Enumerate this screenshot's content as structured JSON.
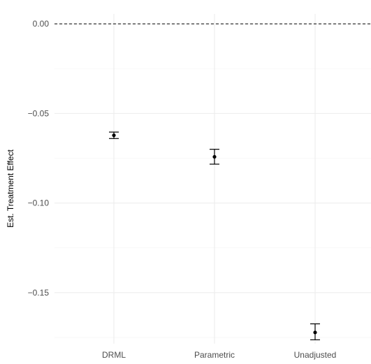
{
  "chart_data": {
    "type": "scatter",
    "title": "",
    "xlabel": "",
    "ylabel": "Est. Treatment Effect",
    "categories": [
      "DRML",
      "Parametric",
      "Unadjusted"
    ],
    "series": [
      {
        "estimate": [
          -0.0622,
          -0.0742,
          -0.1722
        ],
        "lower": [
          -0.064,
          -0.0783,
          -0.1763
        ],
        "upper": [
          -0.0604,
          -0.07,
          -0.1674
        ]
      }
    ],
    "reference_line": {
      "y": 0.0,
      "style": "dashed",
      "color": "#000000"
    },
    "ylim": [
      -0.1785,
      0.0055
    ],
    "yticks": [
      0.0,
      -0.05,
      -0.1,
      -0.15
    ],
    "ytick_labels": [
      "0.00",
      "−0.05",
      "−0.10",
      "−0.15"
    ],
    "grid": true,
    "background": "#ffffff",
    "grid_color": "#ebebeb",
    "point_color": "#000000"
  }
}
